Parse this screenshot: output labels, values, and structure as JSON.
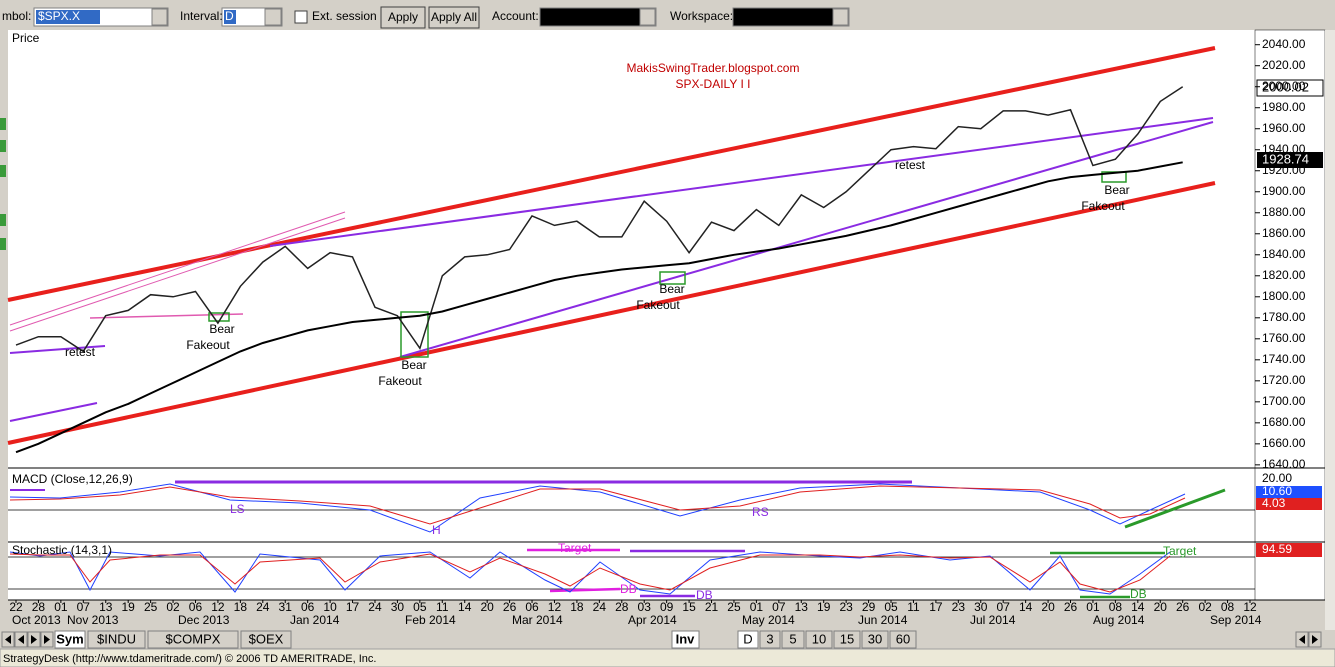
{
  "toolbar": {
    "symbol_label": "mbol:",
    "symbol": "$SPX.X",
    "interval_label": "Interval:",
    "interval": "D",
    "ext_session": "Ext. session",
    "apply": "Apply",
    "apply_all": "Apply All",
    "account_label": "Account:",
    "workspace_label": "Workspace:"
  },
  "chart_data": {
    "type": "line",
    "title": "MakisSwingTrader.blogspot.com",
    "subtitle": "SPX-DAILY  I I",
    "y_label": "Price",
    "categories": [
      "22",
      "28",
      "01",
      "07",
      "13",
      "19",
      "25",
      "02",
      "06",
      "12",
      "18",
      "24",
      "31",
      "06",
      "10",
      "17",
      "24",
      "30",
      "05",
      "11",
      "14",
      "20",
      "26",
      "06",
      "12",
      "18",
      "24",
      "28",
      "03",
      "09",
      "15",
      "21",
      "25",
      "01",
      "07",
      "13",
      "19",
      "23",
      "29",
      "05",
      "11",
      "17",
      "23",
      "30",
      "07",
      "14",
      "20",
      "26",
      "01",
      "08",
      "14",
      "20",
      "26",
      "02",
      "08",
      "12"
    ],
    "months": [
      "Oct 2013",
      "Nov 2013",
      "Dec 2013",
      "Jan 2014",
      "Feb 2014",
      "Mar 2014",
      "Apr 2014",
      "May 2014",
      "Jun 2014",
      "Jul 2014",
      "Aug 2014",
      "Sep 2014"
    ],
    "series": [
      {
        "color": "#222222",
        "values": [
          1754,
          1762,
          1762,
          1748,
          1782,
          1787,
          1802,
          1800,
          1805,
          1775,
          1810,
          1833,
          1848,
          1827,
          1842,
          1838,
          1790,
          1782,
          1751,
          1820,
          1838,
          1840,
          1845,
          1877,
          1868,
          1872,
          1857,
          1857,
          1891,
          1872,
          1842,
          1871,
          1863,
          1883,
          1868,
          1897,
          1885,
          1900,
          1920,
          1940,
          1943,
          1941,
          1962,
          1960,
          1977,
          1977,
          1973,
          1978,
          1925,
          1931,
          1955,
          1986,
          2000,
          null,
          null,
          null
        ]
      },
      {
        "color": "#000000",
        "values": [
          1652,
          1660,
          1670,
          1680,
          1690,
          1698,
          1708,
          1718,
          1728,
          1738,
          1748,
          1756,
          1762,
          1768,
          1772,
          1776,
          1778,
          1780,
          1782,
          1786,
          1792,
          1798,
          1804,
          1810,
          1816,
          1820,
          1823,
          1826,
          1828,
          1830,
          1832,
          1836,
          1840,
          1843,
          1846,
          1850,
          1854,
          1858,
          1863,
          1868,
          1874,
          1880,
          1886,
          1892,
          1898,
          1904,
          1910,
          1914,
          1916,
          1918,
          1920,
          1924,
          1928,
          null,
          null,
          null
        ]
      }
    ],
    "ylim": [
      1637,
      2054
    ],
    "yticks": [
      {
        "value": 1640,
        "label": "1640.00"
      },
      {
        "value": 1660,
        "label": "1660.00"
      },
      {
        "value": 1680,
        "label": "1680.00"
      },
      {
        "value": 1700,
        "label": "1700.00"
      },
      {
        "value": 1720,
        "label": "1720.00"
      },
      {
        "value": 1740,
        "label": "1740.00"
      },
      {
        "value": 1760,
        "label": "1760.00"
      },
      {
        "value": 1780,
        "label": "1780.00"
      },
      {
        "value": 1800,
        "label": "1800.00"
      },
      {
        "value": 1820,
        "label": "1820.00"
      },
      {
        "value": 1840,
        "label": "1840.00"
      },
      {
        "value": 1860,
        "label": "1860.00"
      },
      {
        "value": 1880,
        "label": "1880.00"
      },
      {
        "value": 1900,
        "label": "1900.00"
      },
      {
        "value": 1920,
        "label": "1920.00"
      },
      {
        "value": 1940,
        "label": "1940.00"
      },
      {
        "value": 1960,
        "label": "1960.00"
      },
      {
        "value": 1980,
        "label": "1980.00"
      },
      {
        "value": 2000,
        "label": "2000.00"
      },
      {
        "value": 2020,
        "label": "2020.00"
      },
      {
        "value": 2040,
        "label": "2040.00"
      }
    ],
    "price_markers": [
      "2000.02",
      "1928.74"
    ],
    "annotations": [
      "retest",
      "Bear",
      "Fakeout",
      "Bear",
      "Fakeout",
      "Bear",
      "Fakeout",
      "retest",
      "Bear",
      "Fakeout"
    ]
  },
  "indicators": {
    "macd": {
      "title": "MACD (Close,12,26,9)",
      "labels": [
        "LS",
        "H",
        "RS"
      ],
      "axis": [
        "20.00",
        "10.60",
        "4.03"
      ]
    },
    "stochastic": {
      "title": "Stochastic (14,3,1)",
      "labels": [
        "Target",
        "DB",
        "DB",
        "Target",
        "DB"
      ],
      "axis": "94.59"
    }
  },
  "tabs": {
    "symbols": [
      "Sym",
      "$INDU",
      "$COMPX",
      "$OEX"
    ],
    "inv": "Inv",
    "intervals": [
      "D",
      "3",
      "5",
      "10",
      "15",
      "30",
      "60"
    ]
  },
  "status": "StrategyDesk (http://www.tdameritrade.com/) © 2006 TD AMERITRADE, Inc."
}
